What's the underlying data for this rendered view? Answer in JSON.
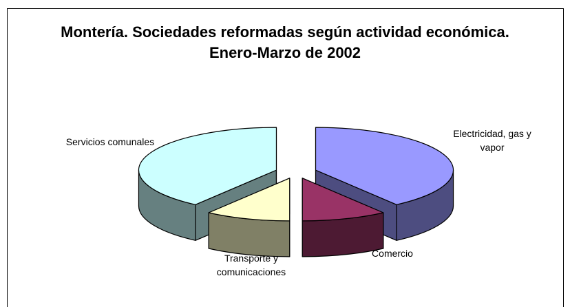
{
  "chart_data": {
    "type": "pie3d",
    "title": "Montería. Sociedades reformadas según actividad económica. Enero-Marzo de 2002",
    "categories": [
      "Electricidad, gas y vapor",
      "Comercio",
      "Transporte  y comunicaciones",
      "Servicios comunales"
    ],
    "values": [
      40,
      10,
      10,
      40
    ],
    "colors": [
      "#9999ff",
      "#993366",
      "#ffffcc",
      "#ccffff"
    ]
  }
}
